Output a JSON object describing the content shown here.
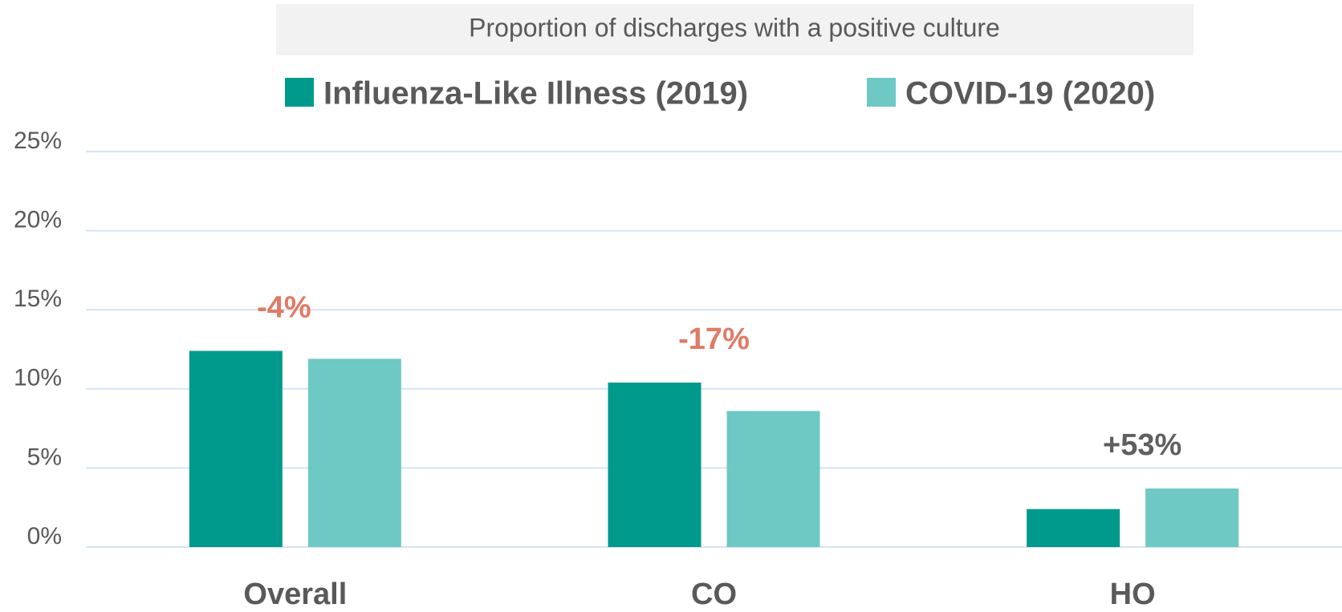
{
  "chart_data": {
    "type": "bar",
    "title": "Proportion of discharges with a positive culture",
    "categories": [
      "Overall",
      "CO",
      "HO"
    ],
    "series": [
      {
        "name": "Influenza-Like Illness (2019)",
        "color": "#009a8c",
        "values": [
          12.4,
          10.4,
          2.4
        ]
      },
      {
        "name": "COVID-19 (2020)",
        "color": "#6ec8c4",
        "values": [
          11.9,
          8.6,
          3.7
        ]
      }
    ],
    "annotations": [
      {
        "text": "-4%",
        "color": "#e07a66"
      },
      {
        "text": "-17%",
        "color": "#e07a66"
      },
      {
        "text": "+53%",
        "color": "#5f5f5f"
      }
    ],
    "ylim": [
      0,
      25
    ],
    "yticks": [
      {
        "value": 0,
        "label": "0%"
      },
      {
        "value": 5,
        "label": "5%"
      },
      {
        "value": 10,
        "label": "10%"
      },
      {
        "value": 15,
        "label": "15%"
      },
      {
        "value": 20,
        "label": "20%"
      },
      {
        "value": 25,
        "label": "25%"
      }
    ],
    "grid": true
  }
}
